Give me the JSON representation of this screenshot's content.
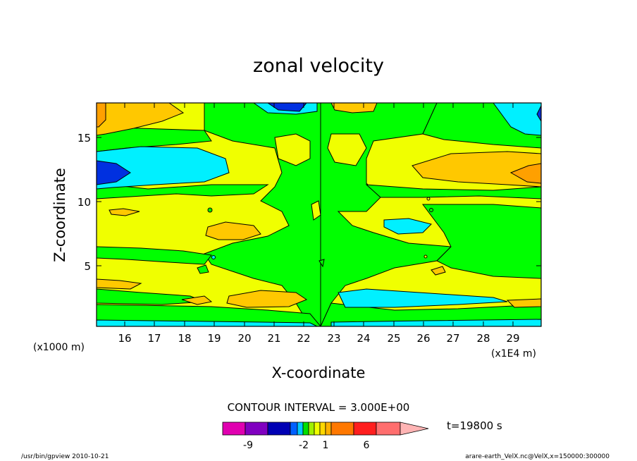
{
  "chart_data": {
    "type": "heatmap",
    "title": "zonal velocity",
    "xlabel": "X-coordinate",
    "ylabel": "Z-coordinate",
    "x_unit_label": "(x1E4 m)",
    "y_unit_label": "(x1000 m)",
    "x_ticks": [
      "16",
      "17",
      "18",
      "19",
      "20",
      "21",
      "22",
      "23",
      "24",
      "25",
      "26",
      "27",
      "28",
      "29"
    ],
    "y_ticks": [
      "5",
      "10",
      "15"
    ],
    "xlim": [
      15.2,
      30.0
    ],
    "ylim": [
      0.2,
      17.6
    ],
    "contour_interval_text": "CONTOUR INTERVAL = 3.000E+00",
    "time_text": "t=19800 s",
    "colorbar_labels": [
      "-9",
      "-2",
      "1",
      "6"
    ],
    "colorbar_colors": [
      "#e000b0",
      "#8000c0",
      "#0000b4",
      "#0060ff",
      "#00c8ff",
      "#00e000",
      "#a0f000",
      "#f0ff00",
      "#ffd800",
      "#ffb000",
      "#ff7800",
      "#ff1e1e",
      "#ff6e6e",
      "#ffb4b4"
    ],
    "level_colors": {
      "dark_blue": "#0030e0",
      "cyan": "#00f0ff",
      "green": "#00ff00",
      "yellow": "#f0ff00",
      "gold": "#ffc800",
      "orange": "#ffa000"
    },
    "footer_left": "/usr/bin/gpview   2010-10-21",
    "footer_right": "arare-earth_VelX.nc@VelX,x=150000:300000"
  }
}
